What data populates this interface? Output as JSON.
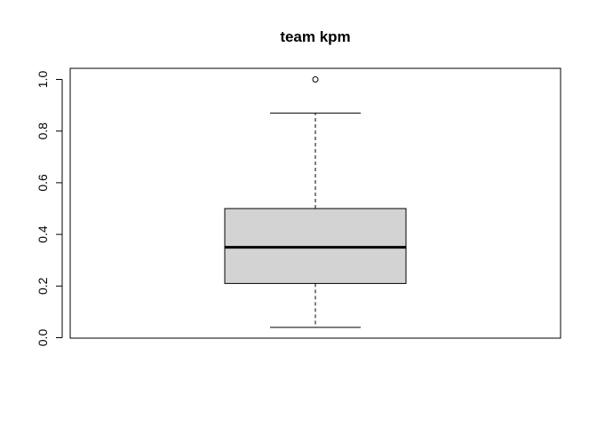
{
  "chart_data": {
    "type": "boxplot",
    "title": "team kpm",
    "xlabel": "",
    "ylabel": "",
    "ylim": [
      0.0,
      1.0
    ],
    "yticks": [
      "0.0",
      "0.2",
      "0.4",
      "0.6",
      "0.8",
      "1.0"
    ],
    "box": {
      "min": 0.04,
      "q1": 0.21,
      "median": 0.35,
      "q3": 0.5,
      "max": 0.87,
      "outliers": [
        1.0
      ]
    },
    "colors": {
      "box_fill": "#d3d3d3",
      "stroke": "#000000"
    }
  }
}
